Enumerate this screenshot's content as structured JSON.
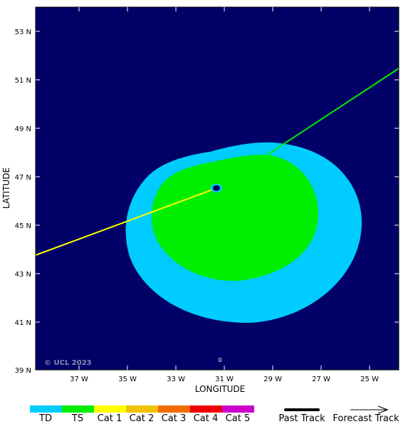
{
  "map": {
    "background_color": "#000066",
    "lat_labels": [
      "53 N",
      "51 N",
      "49 N",
      "47 N",
      "45 N",
      "43 N",
      "41 N",
      "39 N"
    ],
    "lon_labels": [
      "37 W",
      "35 W",
      "33 W",
      "31 W",
      "29 W",
      "27 W",
      "25 W"
    ],
    "xlabel": "LONGITUDE",
    "ylabel": "LATITUDE",
    "credit": "© UCL 2023",
    "storm_number": "0"
  },
  "wind_field": {
    "td_color": "#00ccff",
    "ts_color": "#00ee00"
  },
  "tracks": {
    "past_color": "#ffff00",
    "forecast_color": "#00ee00"
  },
  "legend": {
    "categories": [
      {
        "label": "TD",
        "color": "#00ccff"
      },
      {
        "label": "TS",
        "color": "#00ee00"
      },
      {
        "label": "Cat 1",
        "color": "#ffff00"
      },
      {
        "label": "Cat 2",
        "color": "#f2c200"
      },
      {
        "label": "Cat 3",
        "color": "#f26a00"
      },
      {
        "label": "Cat 4",
        "color": "#ee0000"
      },
      {
        "label": "Cat 5",
        "color": "#cc00cc"
      }
    ],
    "past_track_label": "Past Track",
    "forecast_track_label": "Forecast Track"
  }
}
